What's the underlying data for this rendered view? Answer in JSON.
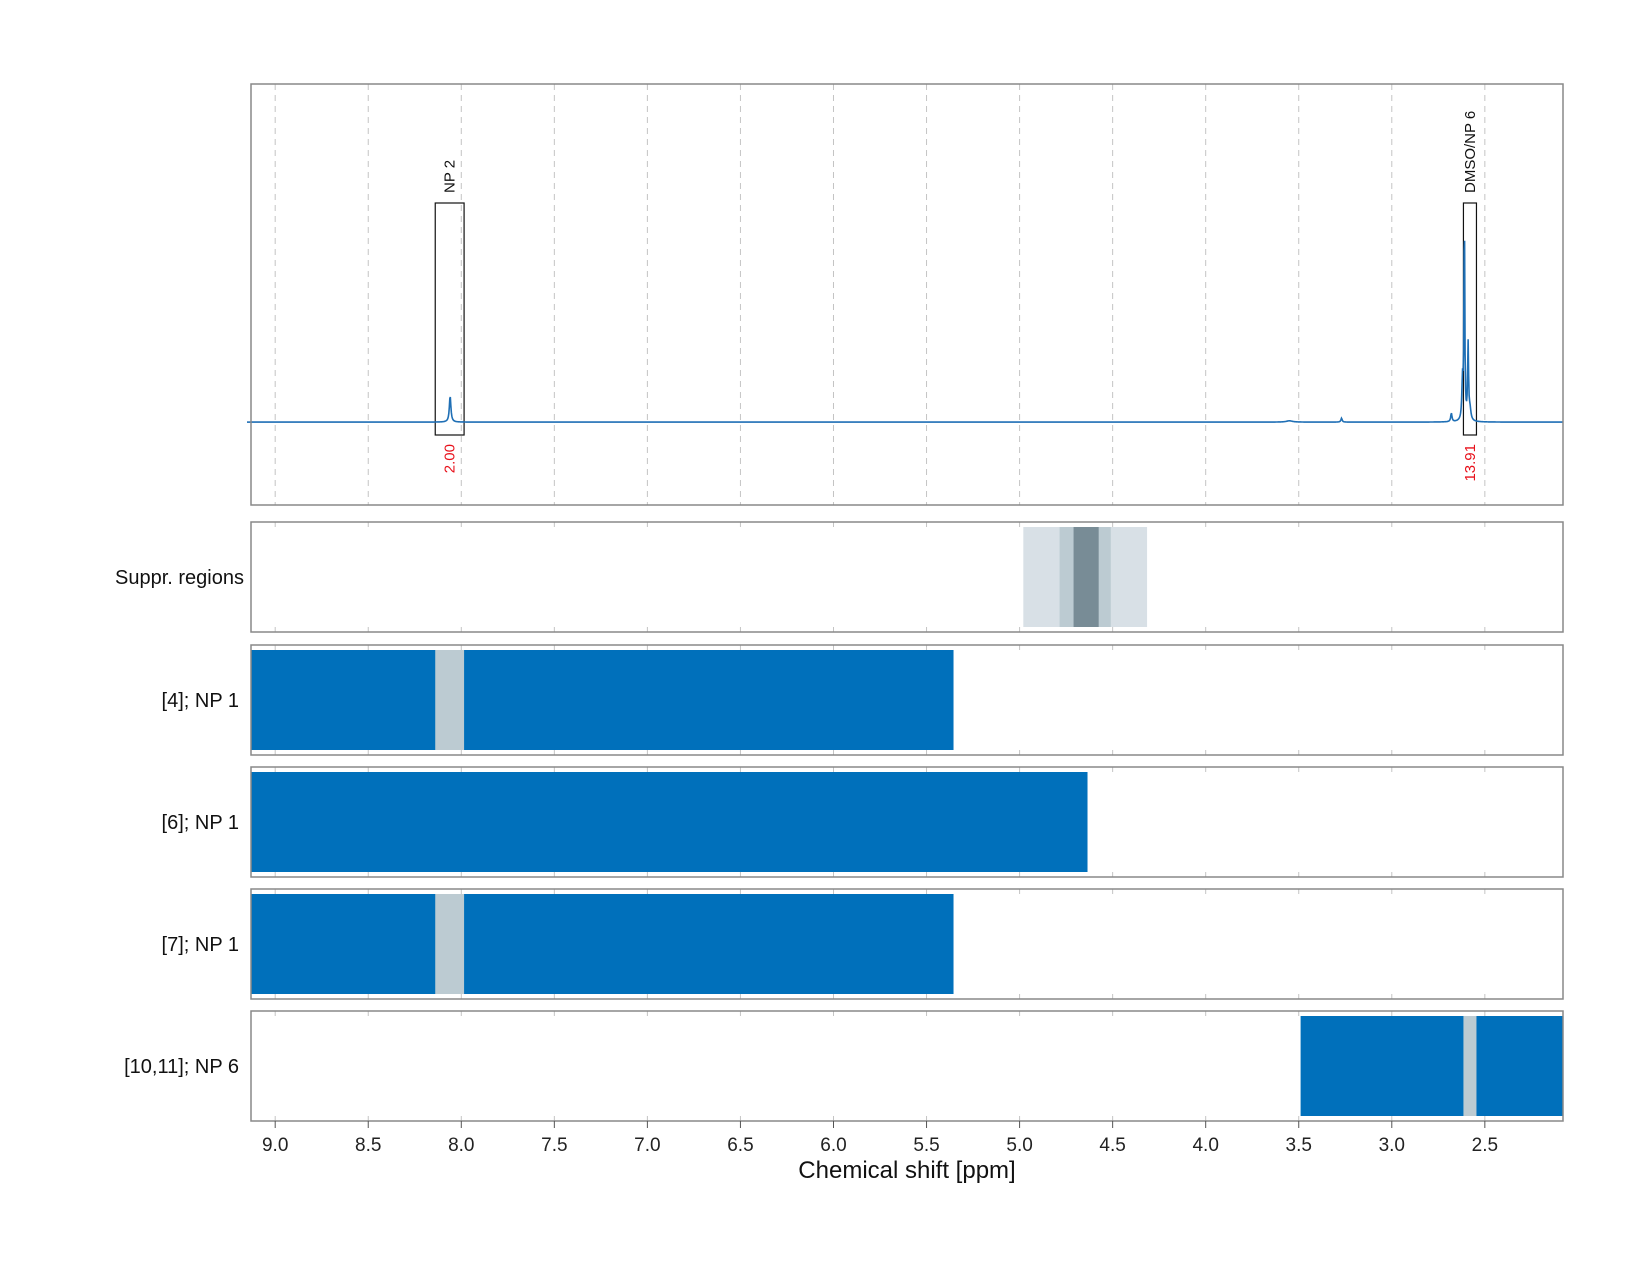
{
  "chart_data": {
    "type": "nmr-spectrum-with-range-bars",
    "xlabel": "Chemical shift [ppm]",
    "x_reversed": true,
    "xlim": [
      9.13,
      2.08
    ],
    "xticks": [
      9.0,
      8.5,
      8.0,
      7.5,
      7.0,
      6.5,
      6.0,
      5.5,
      5.0,
      4.5,
      4.0,
      3.5,
      3.0,
      2.5
    ],
    "xtick_labels": [
      "9.0",
      "8.5",
      "8.0",
      "7.5",
      "7.0",
      "6.5",
      "6.0",
      "5.5",
      "5.0",
      "4.5",
      "4.0",
      "3.5",
      "3.0",
      "2.5"
    ],
    "grid": "dashed vertical at ticks",
    "colors": {
      "spectrum": "#1f6fb5",
      "range_fill": "#0070bb",
      "overlap_gray": "#bccbd2",
      "suppr_light": "#d8e0e6",
      "suppr_mid": "#bccbd2",
      "suppr_dark": "#788c96",
      "integral_text": "#e8111b",
      "frame": "#888888",
      "grid": "#c4c4c4"
    },
    "spectrum": {
      "baseline": 0,
      "ylim": [
        -0.38,
        1.55
      ],
      "peaks": [
        {
          "x": 8.06,
          "height": 0.12,
          "width": 0.005
        },
        {
          "x": 3.27,
          "height": 0.018,
          "width": 0.004
        },
        {
          "x": 3.55,
          "height": 0.006,
          "width": 0.02
        },
        {
          "x": 2.68,
          "height": 0.04,
          "width": 0.004
        },
        {
          "x": 2.62,
          "height": 0.18,
          "width": 0.004
        },
        {
          "x": 2.61,
          "height": 1.0,
          "width": 0.0025
        },
        {
          "x": 2.59,
          "height": 0.35,
          "width": 0.003
        },
        {
          "x": 2.58,
          "height": 0.05,
          "width": 0.006
        }
      ],
      "annotations": [
        {
          "label": "NP 2",
          "x_from": 8.14,
          "x_to": 7.985,
          "integral": "2.00"
        },
        {
          "label": "DMSO/NP 6",
          "x_from": 2.615,
          "x_to": 2.545,
          "integral": "13.91"
        }
      ]
    },
    "suppr_regions": {
      "label": "Suppr. regions",
      "bands": [
        {
          "from": 4.98,
          "to": 4.315,
          "level": "light"
        },
        {
          "from": 4.785,
          "to": 4.51,
          "level": "mid"
        },
        {
          "from": 4.71,
          "to": 4.575,
          "level": "dark"
        }
      ]
    },
    "ranges": [
      {
        "label": "[4]; NP 1",
        "segments": [
          {
            "from": 9.13,
            "to": 5.355
          }
        ],
        "overlaps": [
          {
            "from": 8.14,
            "to": 7.985
          }
        ]
      },
      {
        "label": "[6]; NP 1",
        "segments": [
          {
            "from": 9.13,
            "to": 4.635
          }
        ],
        "overlaps": []
      },
      {
        "label": "[7]; NP 1",
        "segments": [
          {
            "from": 9.13,
            "to": 5.355
          }
        ],
        "overlaps": [
          {
            "from": 8.14,
            "to": 7.985
          }
        ]
      },
      {
        "label": "[10,11]; NP 6",
        "segments": [
          {
            "from": 3.49,
            "to": 2.08
          }
        ],
        "overlaps": [
          {
            "from": 2.615,
            "to": 2.545
          }
        ]
      }
    ]
  }
}
